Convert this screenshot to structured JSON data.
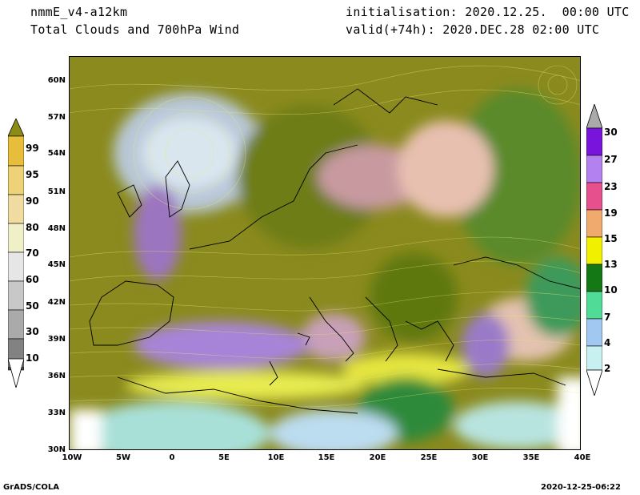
{
  "header": {
    "model": "nmmE_v4-a12km",
    "product": "Total Clouds and 700hPa Wind",
    "init": "initialisation: 2020.12.25.  00:00 UTC",
    "valid": "valid(+74h): 2020.DEC.28 02:00 UTC"
  },
  "map": {
    "lat_labels": [
      "60N",
      "57N",
      "54N",
      "51N",
      "48N",
      "45N",
      "42N",
      "39N",
      "36N",
      "33N",
      "30N"
    ],
    "lon_labels": [
      "10W",
      "5W",
      "0",
      "5E",
      "10E",
      "15E",
      "20E",
      "25E",
      "30E",
      "35E",
      "40E"
    ],
    "lat_range": [
      30,
      61.5
    ],
    "lon_range": [
      -10,
      40
    ]
  },
  "cloud_scale": {
    "labels": [
      "99",
      "95",
      "90",
      "80",
      "70",
      "60",
      "50",
      "30",
      "10"
    ],
    "colors": [
      "#8c8c14",
      "#e6be3c",
      "#eed278",
      "#f0dca0",
      "#f0f0c8",
      "#e6e6e6",
      "#c8c8c8",
      "#aaaaaa",
      "#828282",
      "#505050"
    ]
  },
  "wind_scale": {
    "labels": [
      "30",
      "27",
      "23",
      "19",
      "15",
      "13",
      "10",
      "7",
      "4",
      "2"
    ],
    "colors": [
      "#aaaaaa",
      "#7814dc",
      "#b482f0",
      "#e6508c",
      "#f0aa6e",
      "#f0f000",
      "#147814",
      "#50dc96",
      "#a0c8f0",
      "#c8f0f0",
      "#ffffff"
    ]
  },
  "footer": {
    "left": "GrADS/COLA",
    "right": "2020-12-25-06:22"
  }
}
